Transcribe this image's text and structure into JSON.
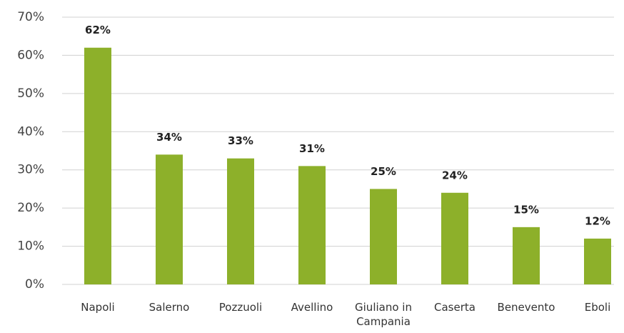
{
  "chart_data": {
    "type": "bar",
    "categories": [
      "Napoli",
      "Salerno",
      "Pozzuoli",
      "Avellino",
      "Giuliano in Campania",
      "Caserta",
      "Benevento",
      "Eboli"
    ],
    "values": [
      62,
      34,
      33,
      31,
      25,
      24,
      15,
      12
    ],
    "value_labels": [
      "62%",
      "34%",
      "33%",
      "31%",
      "25%",
      "24%",
      "15%",
      "12%"
    ],
    "color": "#8db02a",
    "ylim": [
      0,
      70
    ],
    "yticks": [
      {
        "value": 0,
        "label": "0%"
      },
      {
        "value": 10,
        "label": "10%"
      },
      {
        "value": 20,
        "label": "20%"
      },
      {
        "value": 30,
        "label": "30%"
      },
      {
        "value": 40,
        "label": "40%"
      },
      {
        "value": 50,
        "label": "50%"
      },
      {
        "value": 60,
        "label": "60%"
      },
      {
        "value": 70,
        "label": "70%"
      }
    ],
    "grid": true
  }
}
